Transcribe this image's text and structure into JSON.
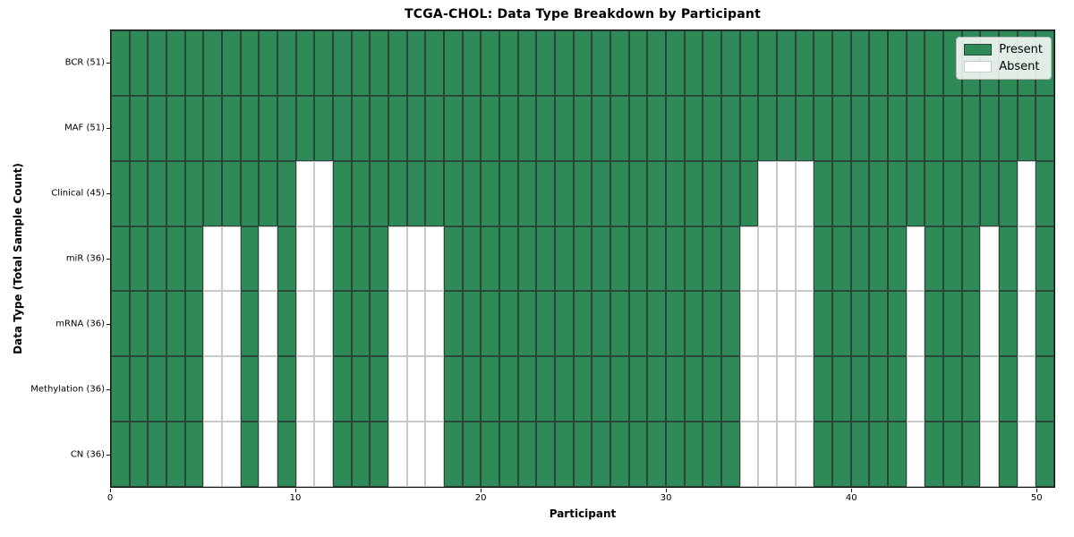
{
  "chart_data": {
    "type": "heatmap",
    "title": "TCGA-CHOL: Data Type Breakdown by Participant",
    "xlabel": "Participant",
    "ylabel": "Data Type (Total Sample Count)",
    "n_participants": 51,
    "xlim": [
      0,
      51
    ],
    "x_ticks": [
      0,
      10,
      20,
      30,
      40,
      50
    ],
    "grid": true,
    "legend_position": "upper right",
    "legend": {
      "present_label": "Present",
      "absent_label": "Absent"
    },
    "colors": {
      "present": "#2E8B57",
      "absent": "#FFFFFF",
      "present_edge": "#2a463a",
      "absent_edge": "#c9c9c9"
    },
    "rows": [
      {
        "data_type": "BCR",
        "total_samples": 51,
        "label": "BCR (51)",
        "absent_participants": []
      },
      {
        "data_type": "MAF",
        "total_samples": 51,
        "label": "MAF (51)",
        "absent_participants": []
      },
      {
        "data_type": "Clinical",
        "total_samples": 45,
        "label": "Clinical (45)",
        "absent_participants": [
          10,
          11,
          35,
          36,
          37,
          49
        ]
      },
      {
        "data_type": "miR",
        "total_samples": 36,
        "label": "miR (36)",
        "absent_participants": [
          5,
          6,
          8,
          10,
          11,
          15,
          16,
          17,
          34,
          35,
          36,
          37,
          43,
          47,
          49
        ]
      },
      {
        "data_type": "mRNA",
        "total_samples": 36,
        "label": "mRNA (36)",
        "absent_participants": [
          5,
          6,
          8,
          10,
          11,
          15,
          16,
          17,
          34,
          35,
          36,
          37,
          43,
          47,
          49
        ]
      },
      {
        "data_type": "Methylation",
        "total_samples": 36,
        "label": "Methylation (36)",
        "absent_participants": [
          5,
          6,
          8,
          10,
          11,
          15,
          16,
          17,
          34,
          35,
          36,
          37,
          43,
          47,
          49
        ]
      },
      {
        "data_type": "CN",
        "total_samples": 36,
        "label": "CN (36)",
        "absent_participants": [
          5,
          6,
          8,
          10,
          11,
          15,
          16,
          17,
          34,
          35,
          36,
          37,
          43,
          47,
          49
        ]
      }
    ]
  }
}
